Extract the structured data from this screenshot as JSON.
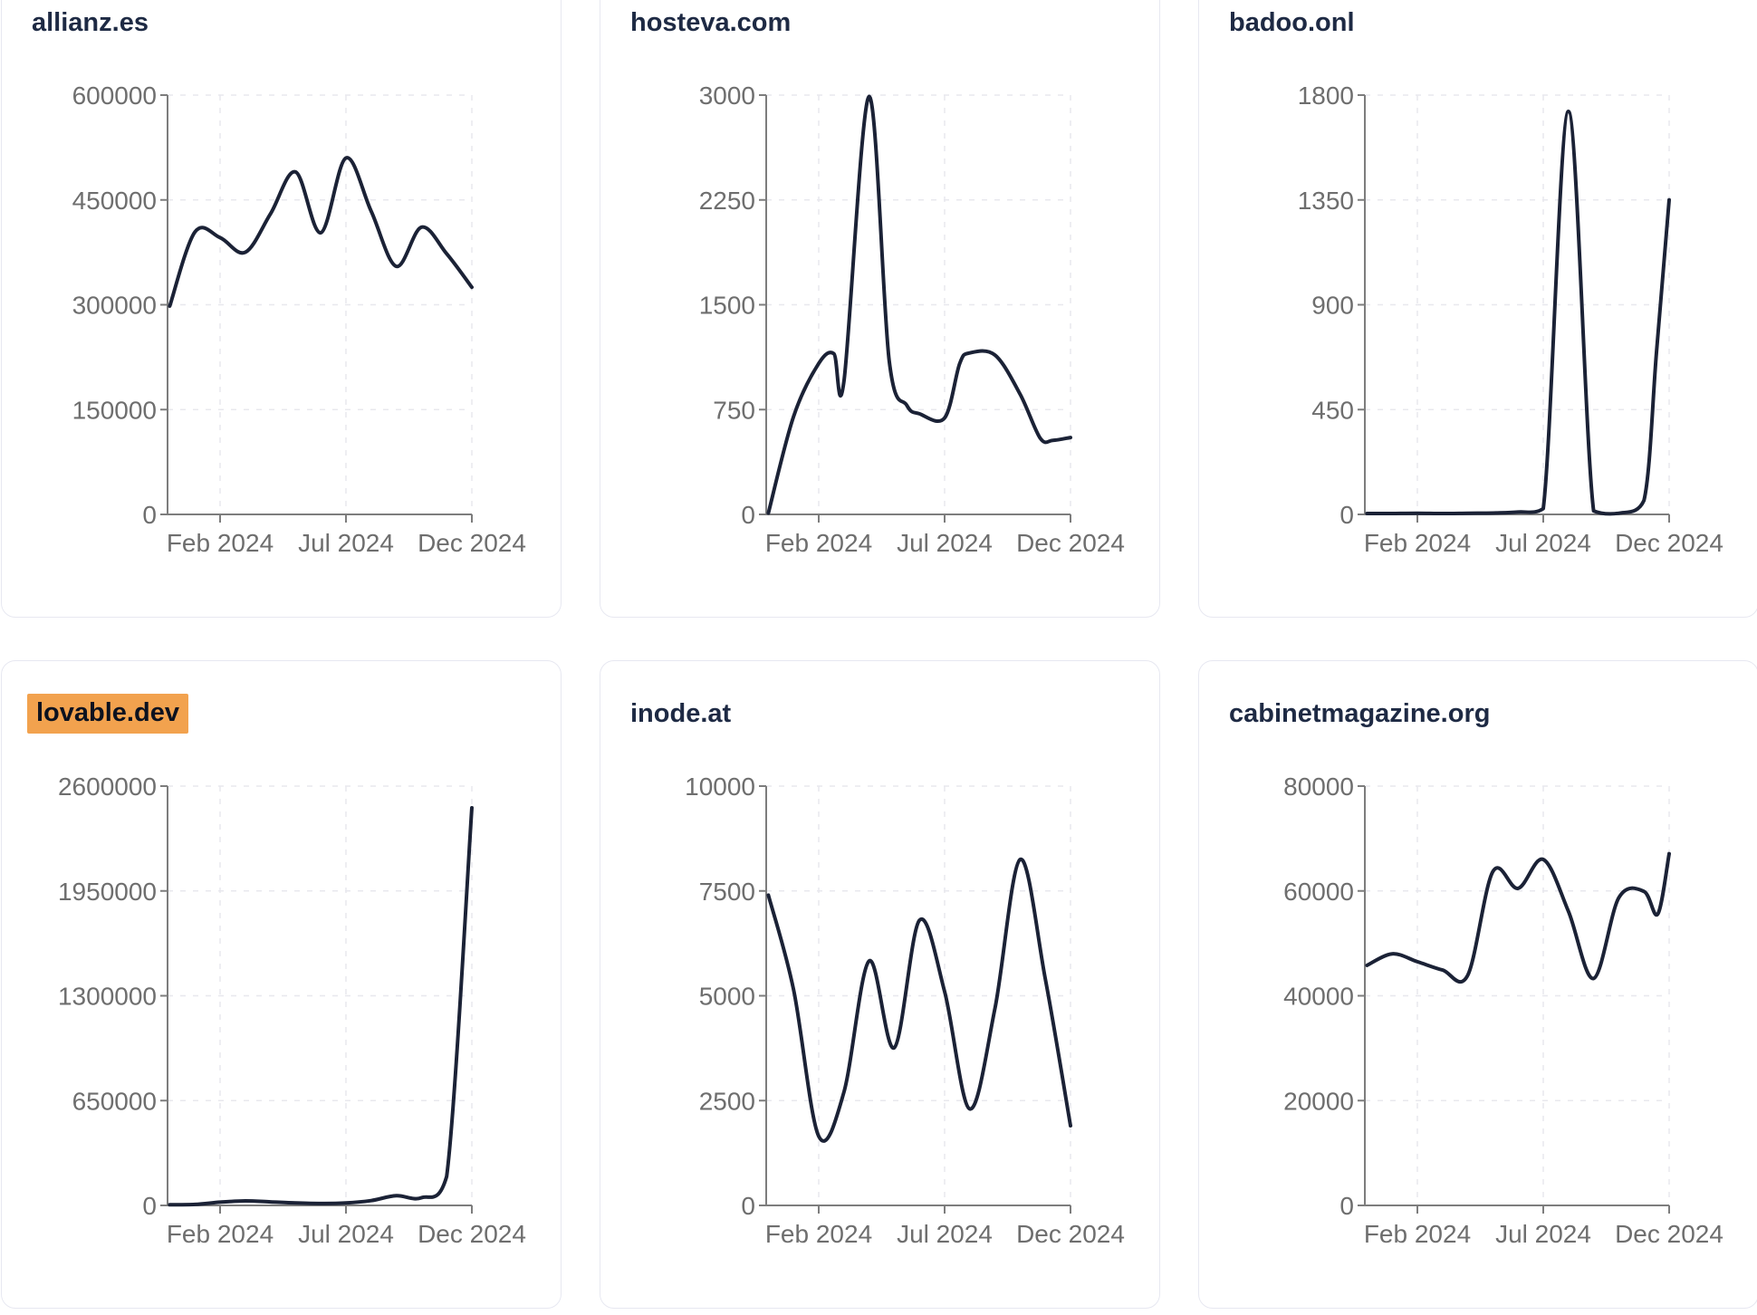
{
  "page": {
    "background": "#ffffff",
    "card_border_color": "#e7e8f1",
    "title_color": "#1e2a44",
    "highlight_color": "#f2a24e",
    "highlight_text_color": "#0c121f",
    "line_color": "#1b2236",
    "axis_color": "#7d7d7d",
    "grid_color": "#e8e8ee",
    "tick_label_color": "#6e6e6e"
  },
  "chart_data": {
    "type": "line",
    "x_range": [
      "Dec 2023",
      "Dec 2024"
    ],
    "x_tick_labels": [
      "Feb 2024",
      "Jul 2024",
      "Dec 2024"
    ],
    "x_tick_months": [
      2,
      7,
      12
    ],
    "grid": "dashed",
    "legend": "none",
    "charts": [
      {
        "title": "allianz.es",
        "highlighted": false,
        "ylim": [
          0,
          600000
        ],
        "y_ticks": [
          0,
          150000,
          300000,
          450000,
          600000
        ],
        "points": [
          [
            0,
            298000
          ],
          [
            1,
            404000
          ],
          [
            2,
            396000
          ],
          [
            3,
            375000
          ],
          [
            4,
            430000
          ],
          [
            5,
            490000
          ],
          [
            6,
            403000
          ],
          [
            7,
            510000
          ],
          [
            8,
            434000
          ],
          [
            9,
            355000
          ],
          [
            10,
            411000
          ],
          [
            11,
            373000
          ],
          [
            12,
            325000
          ]
        ]
      },
      {
        "title": "hosteva.com",
        "highlighted": false,
        "ylim": [
          0,
          3000
        ],
        "y_ticks": [
          0,
          750,
          1500,
          2250,
          3000
        ],
        "points": [
          [
            0,
            10
          ],
          [
            1,
            700
          ],
          [
            2,
            1080
          ],
          [
            2.6,
            1150
          ],
          [
            3,
            950
          ],
          [
            4,
            2990
          ],
          [
            4.8,
            1100
          ],
          [
            5.5,
            780
          ],
          [
            6,
            720
          ],
          [
            7,
            690
          ],
          [
            7.6,
            1080
          ],
          [
            8,
            1155
          ],
          [
            9,
            1140
          ],
          [
            10,
            860
          ],
          [
            10.8,
            545
          ],
          [
            11.3,
            530
          ],
          [
            12,
            550
          ]
        ]
      },
      {
        "title": "badoo.onl",
        "highlighted": false,
        "ylim": [
          0,
          1800
        ],
        "y_ticks": [
          0,
          450,
          900,
          1350,
          1800
        ],
        "points": [
          [
            0,
            4
          ],
          [
            1,
            4
          ],
          [
            2,
            5
          ],
          [
            3,
            4
          ],
          [
            4,
            5
          ],
          [
            5,
            6
          ],
          [
            6,
            10
          ],
          [
            7,
            25
          ],
          [
            8,
            1730
          ],
          [
            9,
            15
          ],
          [
            10,
            5
          ],
          [
            11,
            60
          ],
          [
            11.5,
            700
          ],
          [
            12,
            1350
          ]
        ]
      },
      {
        "title": "lovable.dev",
        "highlighted": true,
        "ylim": [
          0,
          2600000
        ],
        "y_ticks": [
          0,
          650000,
          1300000,
          1950000,
          2600000
        ],
        "points": [
          [
            0,
            4000
          ],
          [
            1,
            6000
          ],
          [
            2,
            20000
          ],
          [
            3,
            28000
          ],
          [
            4,
            22000
          ],
          [
            5,
            15000
          ],
          [
            6,
            12000
          ],
          [
            7,
            15000
          ],
          [
            8,
            30000
          ],
          [
            9,
            60000
          ],
          [
            10,
            48000
          ],
          [
            11,
            180000
          ],
          [
            12,
            2465000
          ]
        ]
      },
      {
        "title": "inode.at",
        "highlighted": false,
        "ylim": [
          0,
          10000
        ],
        "y_ticks": [
          0,
          2500,
          5000,
          7500,
          10000
        ],
        "points": [
          [
            0,
            7400
          ],
          [
            1,
            5150
          ],
          [
            2,
            1650
          ],
          [
            3,
            2700
          ],
          [
            4,
            5830
          ],
          [
            5,
            3760
          ],
          [
            6,
            6800
          ],
          [
            7,
            5100
          ],
          [
            8,
            2300
          ],
          [
            9,
            4700
          ],
          [
            10,
            8250
          ],
          [
            11,
            5400
          ],
          [
            12,
            1900
          ]
        ]
      },
      {
        "title": "cabinetmagazine.org",
        "highlighted": false,
        "ylim": [
          0,
          80000
        ],
        "y_ticks": [
          0,
          20000,
          40000,
          60000,
          80000
        ],
        "points": [
          [
            0,
            45800
          ],
          [
            1,
            48000
          ],
          [
            2,
            46500
          ],
          [
            3,
            44900
          ],
          [
            4,
            43900
          ],
          [
            5,
            63700
          ],
          [
            6,
            60500
          ],
          [
            7,
            66000
          ],
          [
            8,
            56100
          ],
          [
            9,
            43300
          ],
          [
            10,
            58700
          ],
          [
            11,
            59900
          ],
          [
            11.55,
            55600
          ],
          [
            12,
            67100
          ]
        ]
      }
    ]
  }
}
